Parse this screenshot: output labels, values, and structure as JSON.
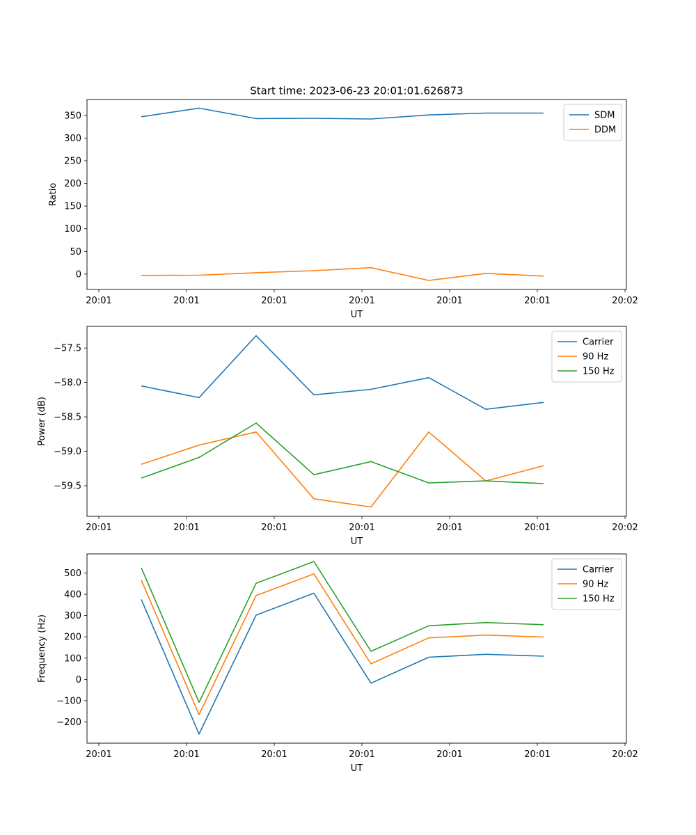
{
  "figure": {
    "title": "Start time: 2023-06-23 20:01:01.626873"
  },
  "chart_data": [
    {
      "type": "line",
      "xlabel": "UT",
      "ylabel": "Ratio",
      "x_tick_labels": [
        "20:01",
        "20:01",
        "20:01",
        "20:01",
        "20:01",
        "20:01",
        "20:02"
      ],
      "y_ticks": [
        0,
        50,
        100,
        150,
        200,
        250,
        300,
        350
      ],
      "ylim": [
        -34,
        385
      ],
      "grid": false,
      "legend_position": "top-right",
      "series": [
        {
          "name": "SDM",
          "color": "#1f77b4",
          "values": [
            347,
            366,
            343,
            343.5,
            342,
            351,
            355,
            355
          ]
        },
        {
          "name": "DDM",
          "color": "#ff7f0e",
          "values": [
            -3,
            -2.5,
            3,
            7.5,
            14,
            -14,
            1.5,
            -4.5
          ]
        }
      ]
    },
    {
      "type": "line",
      "xlabel": "UT",
      "ylabel": "Power (dB)",
      "x_tick_labels": [
        "20:01",
        "20:01",
        "20:01",
        "20:01",
        "20:01",
        "20:01",
        "20:02"
      ],
      "y_ticks": [
        -59.5,
        -59.0,
        -58.5,
        -58.0,
        -57.5
      ],
      "y_tick_labels": [
        "−59.5",
        "−59.0",
        "−58.5",
        "−58.0",
        "−57.5"
      ],
      "ylim": [
        -59.945,
        -57.185
      ],
      "grid": false,
      "legend_position": "top-right",
      "series": [
        {
          "name": "Carrier",
          "color": "#1f77b4",
          "values": [
            -58.05,
            -58.22,
            -57.32,
            -58.18,
            -58.1,
            -57.93,
            -58.39,
            -58.29
          ]
        },
        {
          "name": "90 Hz",
          "color": "#ff7f0e",
          "values": [
            -59.19,
            -58.91,
            -58.72,
            -59.69,
            -59.81,
            -58.72,
            -59.43,
            -59.21
          ]
        },
        {
          "name": "150 Hz",
          "color": "#2ca02c",
          "values": [
            -59.39,
            -59.09,
            -58.59,
            -59.34,
            -59.15,
            -59.46,
            -59.43,
            -59.47
          ]
        }
      ]
    },
    {
      "type": "line",
      "xlabel": "UT",
      "ylabel": "Frequency (Hz)",
      "x_tick_labels": [
        "20:01",
        "20:01",
        "20:01",
        "20:01",
        "20:01",
        "20:01",
        "20:02"
      ],
      "y_ticks": [
        -200,
        -100,
        0,
        100,
        200,
        300,
        400,
        500
      ],
      "y_tick_labels": [
        "−200",
        "−100",
        "0",
        "100",
        "200",
        "300",
        "400",
        "500"
      ],
      "ylim": [
        -300,
        590
      ],
      "grid": false,
      "legend_position": "top-right",
      "series": [
        {
          "name": "Carrier",
          "color": "#1f77b4",
          "values": [
            376,
            -257,
            302,
            405,
            -18,
            104,
            118,
            109
          ]
        },
        {
          "name": "90 Hz",
          "color": "#ff7f0e",
          "values": [
            467,
            -166,
            394,
            496,
            73,
            195,
            208,
            199
          ]
        },
        {
          "name": "150 Hz",
          "color": "#2ca02c",
          "values": [
            525,
            -108,
            452,
            554,
            132,
            252,
            267,
            257
          ]
        }
      ]
    }
  ]
}
